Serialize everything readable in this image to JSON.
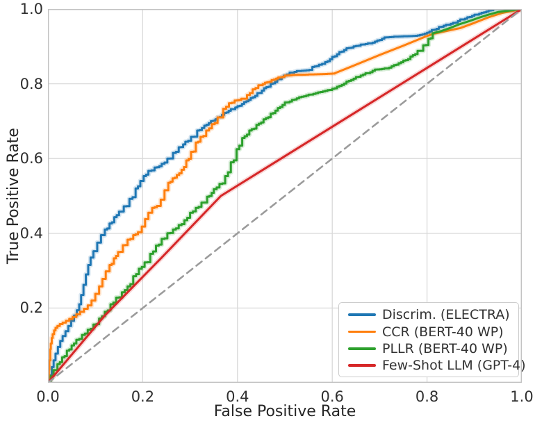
{
  "chart_data": {
    "type": "line",
    "title": "",
    "xlabel": "False Positive Rate",
    "ylabel": "True Positive Rate",
    "xlim": [
      0.0,
      1.0
    ],
    "ylim": [
      0.0,
      1.0
    ],
    "x_ticks": [
      "0.0",
      "0.2",
      "0.4",
      "0.6",
      "0.8",
      "1.0"
    ],
    "y_ticks": [
      "0.2",
      "0.4",
      "0.6",
      "0.8",
      "1.0"
    ],
    "grid": true,
    "legend_position": "lower right",
    "colors": {
      "grid": "#d9d9d9",
      "spine": "#c2c2c2",
      "tick_text": "#303030",
      "label_text": "#262626",
      "legend_border": "#cccccc",
      "diagonal": "#9b9b9b"
    },
    "series": [
      {
        "name": "Discrim. (ELECTRA)",
        "color": "#1f77b4",
        "style": "step",
        "step_range": [
          0,
          0.945
        ],
        "points": [
          [
            0,
            0
          ],
          [
            0.004,
            0.02
          ],
          [
            0.008,
            0.042
          ],
          [
            0.012,
            0.06
          ],
          [
            0.016,
            0.078
          ],
          [
            0.021,
            0.096
          ],
          [
            0.026,
            0.112
          ],
          [
            0.031,
            0.125
          ],
          [
            0.037,
            0.138
          ],
          [
            0.043,
            0.152
          ],
          [
            0.049,
            0.166
          ],
          [
            0.055,
            0.18
          ],
          [
            0.061,
            0.194
          ],
          [
            0.066,
            0.21
          ],
          [
            0.07,
            0.235
          ],
          [
            0.075,
            0.262
          ],
          [
            0.08,
            0.29
          ],
          [
            0.085,
            0.315
          ],
          [
            0.09,
            0.335
          ],
          [
            0.096,
            0.352
          ],
          [
            0.104,
            0.375
          ],
          [
            0.112,
            0.395
          ],
          [
            0.12,
            0.41
          ],
          [
            0.13,
            0.426
          ],
          [
            0.14,
            0.443
          ],
          [
            0.15,
            0.458
          ],
          [
            0.16,
            0.472
          ],
          [
            0.172,
            0.492
          ],
          [
            0.185,
            0.52
          ],
          [
            0.195,
            0.54
          ],
          [
            0.202,
            0.553
          ],
          [
            0.212,
            0.567
          ],
          [
            0.225,
            0.576
          ],
          [
            0.24,
            0.586
          ],
          [
            0.252,
            0.6
          ],
          [
            0.264,
            0.615
          ],
          [
            0.276,
            0.63
          ],
          [
            0.29,
            0.645
          ],
          [
            0.302,
            0.658
          ],
          [
            0.315,
            0.675
          ],
          [
            0.33,
            0.688
          ],
          [
            0.344,
            0.7
          ],
          [
            0.358,
            0.71
          ],
          [
            0.372,
            0.722
          ],
          [
            0.386,
            0.732
          ],
          [
            0.4,
            0.74
          ],
          [
            0.414,
            0.751
          ],
          [
            0.428,
            0.762
          ],
          [
            0.442,
            0.775
          ],
          [
            0.456,
            0.788
          ],
          [
            0.47,
            0.8
          ],
          [
            0.484,
            0.812
          ],
          [
            0.498,
            0.822
          ],
          [
            0.51,
            0.83
          ],
          [
            0.525,
            0.834
          ],
          [
            0.545,
            0.836
          ],
          [
            0.558,
            0.845
          ],
          [
            0.572,
            0.851
          ],
          [
            0.585,
            0.858
          ],
          [
            0.6,
            0.872
          ],
          [
            0.615,
            0.885
          ],
          [
            0.63,
            0.895
          ],
          [
            0.645,
            0.9
          ],
          [
            0.66,
            0.905
          ],
          [
            0.675,
            0.908
          ],
          [
            0.695,
            0.916
          ],
          [
            0.71,
            0.924
          ],
          [
            0.73,
            0.926
          ],
          [
            0.75,
            0.927
          ],
          [
            0.77,
            0.928
          ],
          [
            0.79,
            0.932
          ],
          [
            0.81,
            0.944
          ],
          [
            0.825,
            0.952
          ],
          [
            0.84,
            0.958
          ],
          [
            0.855,
            0.963
          ],
          [
            0.87,
            0.972
          ],
          [
            0.885,
            0.978
          ],
          [
            0.9,
            0.985
          ],
          [
            0.915,
            0.99
          ],
          [
            0.93,
            0.996
          ],
          [
            0.94,
            1
          ],
          [
            1,
            1
          ]
        ]
      },
      {
        "name": "CCR (BERT-40 WP)",
        "color": "#ff7f0e",
        "style": "step",
        "step_range": [
          0,
          0.615
        ],
        "points": [
          [
            0,
            0
          ],
          [
            0.002,
            0.035
          ],
          [
            0.003,
            0.06
          ],
          [
            0.005,
            0.09
          ],
          [
            0.006,
            0.105
          ],
          [
            0.008,
            0.12
          ],
          [
            0.01,
            0.13
          ],
          [
            0.013,
            0.14
          ],
          [
            0.016,
            0.147
          ],
          [
            0.02,
            0.152
          ],
          [
            0.025,
            0.157
          ],
          [
            0.031,
            0.161
          ],
          [
            0.038,
            0.166
          ],
          [
            0.045,
            0.171
          ],
          [
            0.052,
            0.176
          ],
          [
            0.06,
            0.183
          ],
          [
            0.068,
            0.19
          ],
          [
            0.076,
            0.198
          ],
          [
            0.084,
            0.207
          ],
          [
            0.092,
            0.22
          ],
          [
            0.1,
            0.238
          ],
          [
            0.108,
            0.258
          ],
          [
            0.115,
            0.278
          ],
          [
            0.122,
            0.298
          ],
          [
            0.13,
            0.315
          ],
          [
            0.139,
            0.333
          ],
          [
            0.148,
            0.35
          ],
          [
            0.158,
            0.368
          ],
          [
            0.168,
            0.383
          ],
          [
            0.18,
            0.395
          ],
          [
            0.19,
            0.403
          ],
          [
            0.198,
            0.418
          ],
          [
            0.205,
            0.438
          ],
          [
            0.212,
            0.455
          ],
          [
            0.22,
            0.468
          ],
          [
            0.23,
            0.473
          ],
          [
            0.238,
            0.49
          ],
          [
            0.246,
            0.515
          ],
          [
            0.254,
            0.535
          ],
          [
            0.263,
            0.547
          ],
          [
            0.272,
            0.556
          ],
          [
            0.282,
            0.57
          ],
          [
            0.292,
            0.595
          ],
          [
            0.302,
            0.618
          ],
          [
            0.312,
            0.643
          ],
          [
            0.322,
            0.658
          ],
          [
            0.334,
            0.675
          ],
          [
            0.346,
            0.692
          ],
          [
            0.358,
            0.71
          ],
          [
            0.37,
            0.733
          ],
          [
            0.382,
            0.748
          ],
          [
            0.394,
            0.755
          ],
          [
            0.408,
            0.76
          ],
          [
            0.42,
            0.77
          ],
          [
            0.432,
            0.785
          ],
          [
            0.444,
            0.796
          ],
          [
            0.458,
            0.803
          ],
          [
            0.472,
            0.81
          ],
          [
            0.486,
            0.817
          ],
          [
            0.5,
            0.822
          ],
          [
            0.52,
            0.824
          ],
          [
            0.55,
            0.825
          ],
          [
            0.58,
            0.826
          ],
          [
            0.605,
            0.828
          ],
          [
            0.65,
            0.851
          ],
          [
            0.7,
            0.877
          ],
          [
            0.75,
            0.902
          ],
          [
            0.8,
            0.928
          ],
          [
            0.814,
            0.934
          ],
          [
            0.84,
            0.941
          ],
          [
            0.87,
            0.949
          ],
          [
            0.9,
            0.963
          ],
          [
            0.93,
            0.978
          ],
          [
            0.96,
            0.99
          ],
          [
            1,
            1
          ]
        ]
      },
      {
        "name": "PLLR (BERT-40 WP)",
        "color": "#2ca02c",
        "style": "step",
        "step_range": [
          0,
          0.815
        ],
        "points": [
          [
            0,
            0
          ],
          [
            0.006,
            0.018
          ],
          [
            0.012,
            0.034
          ],
          [
            0.02,
            0.05
          ],
          [
            0.03,
            0.068
          ],
          [
            0.04,
            0.086
          ],
          [
            0.05,
            0.1
          ],
          [
            0.06,
            0.115
          ],
          [
            0.072,
            0.128
          ],
          [
            0.084,
            0.142
          ],
          [
            0.096,
            0.156
          ],
          [
            0.108,
            0.172
          ],
          [
            0.12,
            0.19
          ],
          [
            0.132,
            0.21
          ],
          [
            0.144,
            0.228
          ],
          [
            0.156,
            0.242
          ],
          [
            0.168,
            0.258
          ],
          [
            0.18,
            0.285
          ],
          [
            0.192,
            0.305
          ],
          [
            0.204,
            0.322
          ],
          [
            0.216,
            0.345
          ],
          [
            0.228,
            0.367
          ],
          [
            0.24,
            0.385
          ],
          [
            0.252,
            0.4
          ],
          [
            0.264,
            0.41
          ],
          [
            0.276,
            0.422
          ],
          [
            0.288,
            0.435
          ],
          [
            0.3,
            0.455
          ],
          [
            0.312,
            0.468
          ],
          [
            0.324,
            0.482
          ],
          [
            0.336,
            0.498
          ],
          [
            0.35,
            0.518
          ],
          [
            0.362,
            0.532
          ],
          [
            0.374,
            0.553
          ],
          [
            0.386,
            0.59
          ],
          [
            0.398,
            0.625
          ],
          [
            0.41,
            0.655
          ],
          [
            0.425,
            0.675
          ],
          [
            0.44,
            0.69
          ],
          [
            0.455,
            0.705
          ],
          [
            0.47,
            0.72
          ],
          [
            0.485,
            0.735
          ],
          [
            0.5,
            0.75
          ],
          [
            0.515,
            0.757
          ],
          [
            0.53,
            0.764
          ],
          [
            0.55,
            0.771
          ],
          [
            0.57,
            0.777
          ],
          [
            0.59,
            0.783
          ],
          [
            0.61,
            0.792
          ],
          [
            0.63,
            0.806
          ],
          [
            0.65,
            0.818
          ],
          [
            0.67,
            0.828
          ],
          [
            0.69,
            0.838
          ],
          [
            0.71,
            0.841
          ],
          [
            0.73,
            0.85
          ],
          [
            0.75,
            0.862
          ],
          [
            0.765,
            0.873
          ],
          [
            0.78,
            0.888
          ],
          [
            0.792,
            0.903
          ],
          [
            0.803,
            0.92
          ],
          [
            0.812,
            0.935
          ],
          [
            0.83,
            0.941
          ],
          [
            0.85,
            0.95
          ],
          [
            0.87,
            0.96
          ],
          [
            0.89,
            0.968
          ],
          [
            0.91,
            0.977
          ],
          [
            0.93,
            0.985
          ],
          [
            0.95,
            0.992
          ],
          [
            1,
            1
          ]
        ]
      },
      {
        "name": "Few-Shot LLM (GPT-4)",
        "color": "#d62728",
        "style": "line",
        "points": [
          [
            0,
            0
          ],
          [
            0.12,
            0.18
          ],
          [
            0.24,
            0.335
          ],
          [
            0.365,
            0.5
          ],
          [
            1,
            1
          ]
        ]
      },
      {
        "name": "chance-diagonal",
        "color": "#9b9b9b",
        "style": "dashed",
        "legend": false,
        "points": [
          [
            0,
            0
          ],
          [
            1,
            1
          ]
        ]
      }
    ]
  }
}
